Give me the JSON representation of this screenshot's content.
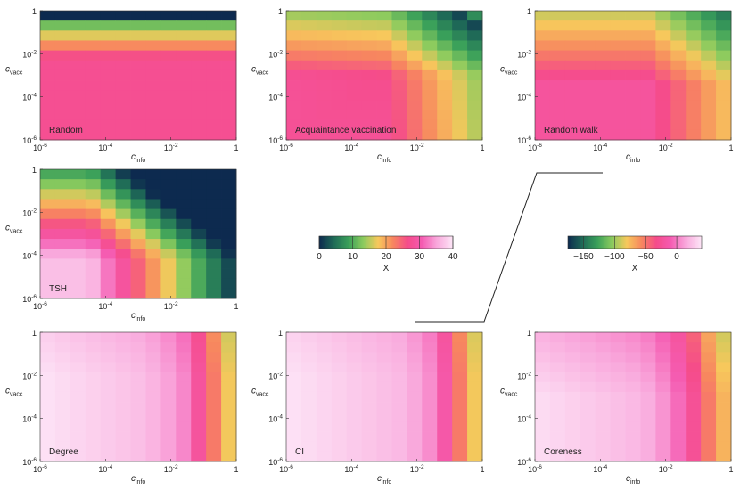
{
  "chart_data": {
    "type": "heatmap",
    "x_axis": {
      "label_main": "c",
      "label_sub": "info",
      "scale": "log",
      "range": [
        1e-06,
        1
      ],
      "ticks": [
        {
          "base": "10",
          "exp": "-6"
        },
        {
          "base": "10",
          "exp": "-4"
        },
        {
          "base": "10",
          "exp": "-2"
        },
        {
          "base": "1",
          "exp": ""
        }
      ]
    },
    "y_axis": {
      "label_main": "c",
      "label_sub": "vacc",
      "scale": "log",
      "range": [
        1e-06,
        1
      ],
      "ticks": [
        {
          "base": "1",
          "exp": ""
        },
        {
          "base": "10",
          "exp": "-2"
        },
        {
          "base": "10",
          "exp": "-4"
        },
        {
          "base": "10",
          "exp": "-6"
        }
      ]
    },
    "grid_size": 13,
    "panels": [
      {
        "title": "Random",
        "scale": "A"
      },
      {
        "title": "Acquaintance vaccination",
        "scale": "A"
      },
      {
        "title": "Random walk",
        "scale": "A"
      },
      {
        "title": "TSH",
        "scale": "A"
      },
      {
        "title": "Degree",
        "scale": "B"
      },
      {
        "title": "CI",
        "scale": "B"
      },
      {
        "title": "Coreness",
        "scale": "B"
      }
    ],
    "colorbars": [
      {
        "id": "A",
        "label": "X",
        "range": [
          0,
          40
        ],
        "ticks": [
          "0",
          "10",
          "20",
          "30",
          "40"
        ],
        "tick_values": [
          0,
          10,
          20,
          30,
          40
        ]
      },
      {
        "id": "B",
        "label": "X",
        "range": [
          -175,
          40
        ],
        "ticks": [
          "−150",
          "−100",
          "−50",
          "0"
        ],
        "tick_values": [
          -150,
          -100,
          -50,
          0
        ]
      }
    ],
    "colormap": [
      "#0d2a4f",
      "#1f6b57",
      "#3aa05a",
      "#8ccb5e",
      "#f7c85c",
      "#f7875f",
      "#f54c8a",
      "#f55cb2",
      "#f9a8dc",
      "#fde6f7"
    ]
  }
}
